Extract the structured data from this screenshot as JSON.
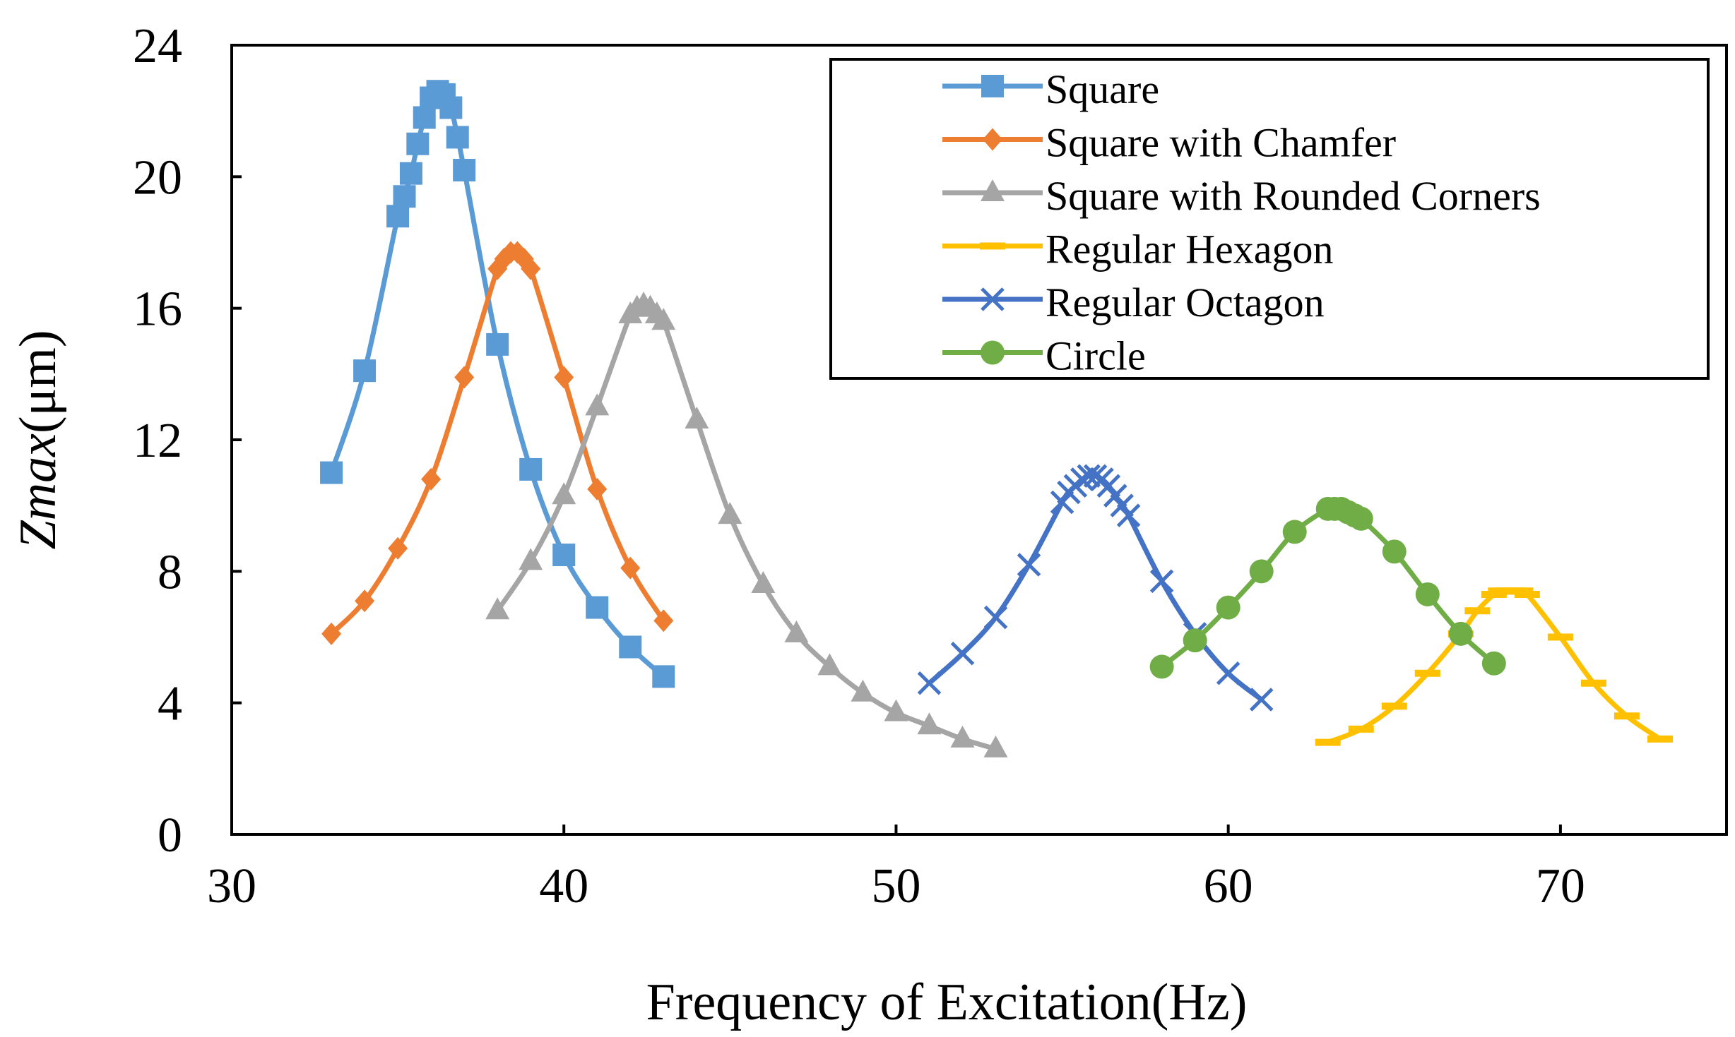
{
  "chart_data": {
    "type": "line",
    "title": "",
    "xlabel": "Frequency of Excitation(Hz)",
    "ylabel_italic": "Zmax",
    "ylabel_unit": "(μm)",
    "xlim": [
      30,
      75
    ],
    "ylim": [
      0,
      24
    ],
    "xticks": [
      30,
      40,
      50,
      60,
      70
    ],
    "yticks": [
      0,
      4,
      8,
      12,
      16,
      20,
      24
    ],
    "legend_position": "top-right",
    "series": [
      {
        "name": "Square",
        "color": "#5B9BD5",
        "marker": "square",
        "points": [
          [
            33,
            11
          ],
          [
            34,
            14.1
          ],
          [
            35,
            18.8
          ],
          [
            35.2,
            19.4
          ],
          [
            35.4,
            20.1
          ],
          [
            35.6,
            21
          ],
          [
            35.8,
            21.8
          ],
          [
            36,
            22.4
          ],
          [
            36.2,
            22.6
          ],
          [
            36.4,
            22.5
          ],
          [
            36.6,
            22.1
          ],
          [
            36.8,
            21.2
          ],
          [
            37,
            20.2
          ],
          [
            38,
            14.9
          ],
          [
            39,
            11.1
          ],
          [
            40,
            8.5
          ],
          [
            41,
            6.9
          ],
          [
            42,
            5.7
          ],
          [
            43,
            4.8
          ]
        ]
      },
      {
        "name": "Square with Chamfer",
        "color": "#ED7D31",
        "marker": "diamond",
        "points": [
          [
            33,
            6.1
          ],
          [
            34,
            7.1
          ],
          [
            35,
            8.7
          ],
          [
            36,
            10.8
          ],
          [
            37,
            13.9
          ],
          [
            38,
            17.2
          ],
          [
            38.2,
            17.5
          ],
          [
            38.4,
            17.7
          ],
          [
            38.6,
            17.7
          ],
          [
            38.8,
            17.5
          ],
          [
            39,
            17.2
          ],
          [
            40,
            13.9
          ],
          [
            41,
            10.5
          ],
          [
            42,
            8.1
          ],
          [
            43,
            6.5
          ]
        ]
      },
      {
        "name": "Square with Rounded Corners",
        "color": "#A5A5A5",
        "marker": "triangle",
        "points": [
          [
            38,
            6.8
          ],
          [
            39,
            8.3
          ],
          [
            40,
            10.3
          ],
          [
            41,
            13
          ],
          [
            42,
            15.8
          ],
          [
            42.2,
            16
          ],
          [
            42.4,
            16.1
          ],
          [
            42.6,
            16
          ],
          [
            42.8,
            15.8
          ],
          [
            43,
            15.6
          ],
          [
            44,
            12.6
          ],
          [
            45,
            9.7
          ],
          [
            46,
            7.6
          ],
          [
            47,
            6.1
          ],
          [
            48,
            5.1
          ],
          [
            49,
            4.3
          ],
          [
            50,
            3.7
          ],
          [
            51,
            3.3
          ],
          [
            52,
            2.9
          ],
          [
            53,
            2.6
          ]
        ]
      },
      {
        "name": "Regular Hexagon",
        "color": "#FFC000",
        "marker": "dash",
        "points": [
          [
            63,
            2.8
          ],
          [
            64,
            3.2
          ],
          [
            65,
            3.9
          ],
          [
            66,
            4.9
          ],
          [
            67,
            6.1
          ],
          [
            67.5,
            6.8
          ],
          [
            68,
            7.3
          ],
          [
            68.2,
            7.4
          ],
          [
            68.4,
            7.4
          ],
          [
            68.6,
            7.4
          ],
          [
            68.8,
            7.4
          ],
          [
            69,
            7.3
          ],
          [
            70,
            6
          ],
          [
            71,
            4.6
          ],
          [
            72,
            3.6
          ],
          [
            73,
            2.9
          ]
        ]
      },
      {
        "name": "Regular Octagon",
        "color": "#4472C4",
        "marker": "x",
        "points": [
          [
            51,
            4.6
          ],
          [
            52,
            5.5
          ],
          [
            53,
            6.6
          ],
          [
            54,
            8.2
          ],
          [
            55,
            10.1
          ],
          [
            55.2,
            10.4
          ],
          [
            55.4,
            10.6
          ],
          [
            55.6,
            10.8
          ],
          [
            55.8,
            10.9
          ],
          [
            56,
            10.9
          ],
          [
            56.2,
            10.8
          ],
          [
            56.4,
            10.6
          ],
          [
            56.6,
            10.3
          ],
          [
            56.8,
            10
          ],
          [
            57,
            9.7
          ],
          [
            58,
            7.7
          ],
          [
            59,
            6.1
          ],
          [
            60,
            4.9
          ],
          [
            61,
            4.1
          ]
        ]
      },
      {
        "name": "Circle",
        "color": "#70AD47",
        "marker": "circle",
        "points": [
          [
            58,
            5.1
          ],
          [
            59,
            5.9
          ],
          [
            60,
            6.9
          ],
          [
            61,
            8
          ],
          [
            62,
            9.2
          ],
          [
            63,
            9.9
          ],
          [
            63.2,
            9.9
          ],
          [
            63.4,
            9.9
          ],
          [
            63.6,
            9.8
          ],
          [
            63.8,
            9.7
          ],
          [
            64,
            9.6
          ],
          [
            65,
            8.6
          ],
          [
            66,
            7.3
          ],
          [
            67,
            6.1
          ],
          [
            68,
            5.2
          ]
        ]
      }
    ]
  }
}
